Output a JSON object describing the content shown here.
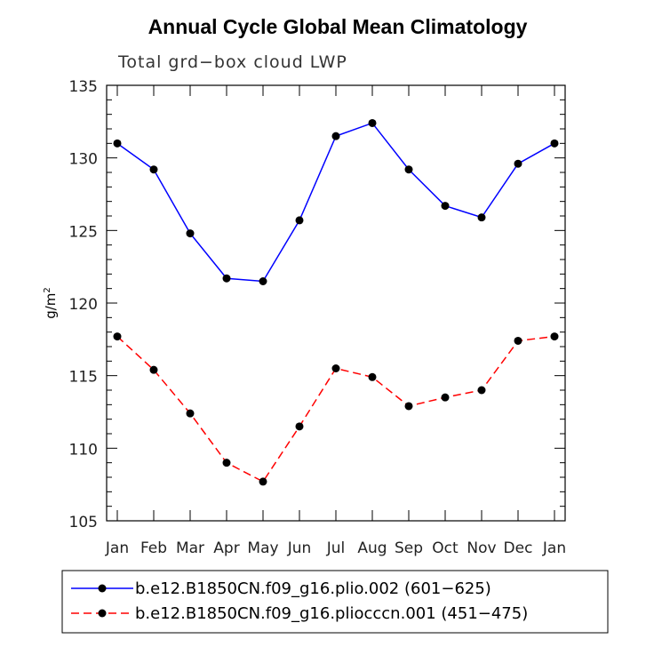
{
  "chart_data": {
    "type": "line",
    "title": "Annual Cycle Global Mean Climatology",
    "subtitle": "Total grd−box cloud LWP",
    "ylabel": "g/m",
    "ylabel_superscript": "2",
    "xlabel": "",
    "categories": [
      "Jan",
      "Feb",
      "Mar",
      "Apr",
      "May",
      "Jun",
      "Jul",
      "Aug",
      "Sep",
      "Oct",
      "Nov",
      "Dec",
      "Jan"
    ],
    "ylim": [
      105,
      135
    ],
    "yticks": [
      105,
      110,
      115,
      120,
      125,
      130,
      135
    ],
    "grid": false,
    "legend_placement": "bottom",
    "series": [
      {
        "name": "b.e12.B1850CN.f09_g16.plio.002 (601−625)",
        "color": "#0000ff",
        "line_style": "solid",
        "values": [
          131.0,
          129.2,
          124.8,
          121.7,
          121.5,
          125.7,
          131.5,
          132.4,
          129.2,
          126.7,
          125.9,
          129.6,
          131.0
        ]
      },
      {
        "name": "b.e12.B1850CN.f09_g16.pliocccn.001 (451−475)",
        "color": "#ff0000",
        "line_style": "dashed",
        "values": [
          117.7,
          115.4,
          112.4,
          109.0,
          107.7,
          111.5,
          115.5,
          114.9,
          112.9,
          113.5,
          114.0,
          117.4,
          117.7
        ]
      }
    ]
  }
}
